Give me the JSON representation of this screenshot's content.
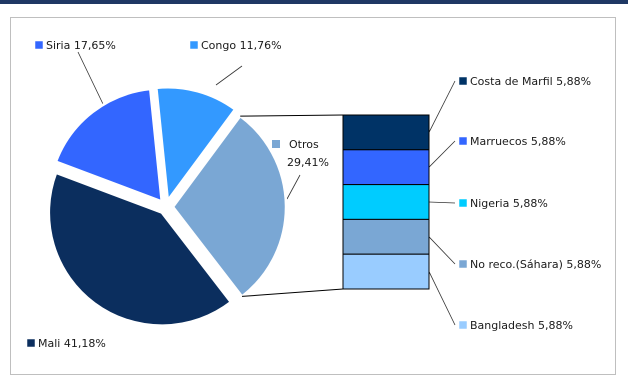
{
  "chart_data": {
    "type": "pie",
    "title": "",
    "slices": [
      {
        "name": "Mali",
        "value": 41.18,
        "label": "Mali 41,18%",
        "color": "#0b2e5e"
      },
      {
        "name": "Siria",
        "value": 17.65,
        "label": "Siria 17,65%",
        "color": "#3366ff"
      },
      {
        "name": "Congo",
        "value": 11.76,
        "label": "Congo 11,76%",
        "color": "#3399ff"
      },
      {
        "name": "Otros",
        "value": 29.41,
        "label_name": "Otros",
        "label_value": "29,41%",
        "color": "#7aa7d4"
      }
    ],
    "breakdown": {
      "of": "Otros",
      "items": [
        {
          "name": "Costa de Marfil",
          "value": 5.88,
          "label": "Costa de Marfil 5,88%",
          "color": "#003366"
        },
        {
          "name": "Marruecos",
          "value": 5.88,
          "label": "Marruecos 5,88%",
          "color": "#3366ff"
        },
        {
          "name": "Nigeria",
          "value": 5.88,
          "label": "Nigeria 5,88%",
          "color": "#00ccff"
        },
        {
          "name": "No reco.(Sáhara)",
          "value": 5.88,
          "label": "No reco.(Sáhara) 5,88%",
          "color": "#7aa7d4"
        },
        {
          "name": "Bangladesh",
          "value": 5.88,
          "label": "Bangladesh 5,88%",
          "color": "#99ccff"
        }
      ]
    },
    "legend": "none",
    "grid": false
  }
}
